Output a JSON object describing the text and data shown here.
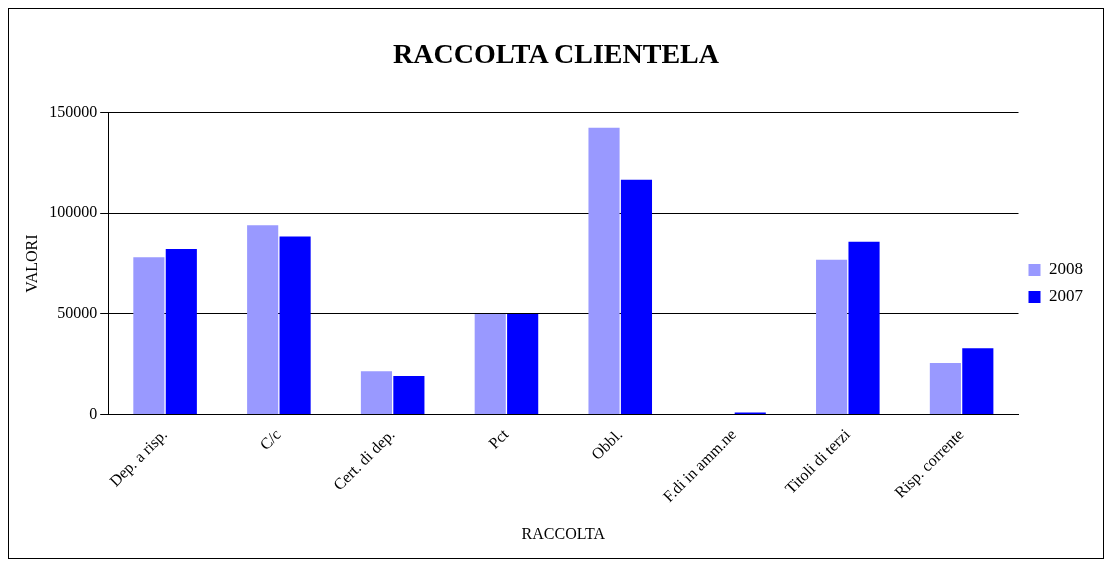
{
  "chart_data": {
    "type": "bar",
    "title": "RACCOLTA CLIENTELA",
    "xlabel": "RACCOLTA",
    "ylabel": "VALORI",
    "categories": [
      "Dep. a risp.",
      "C/c",
      "Cert. di dep.",
      "Pct",
      "Obbl.",
      "F.di in amm.ne",
      "Titoli di terzi",
      "Risp. corrente"
    ],
    "series": [
      {
        "name": "2008",
        "color": "#9999ff",
        "values": [
          78200,
          94000,
          21600,
          50000,
          142500,
          0,
          76900,
          25600
        ]
      },
      {
        "name": "2007",
        "color": "#0000ff",
        "values": [
          82200,
          88500,
          19200,
          50000,
          116700,
          1100,
          85900,
          33000
        ]
      }
    ],
    "ylim": [
      0,
      150000
    ],
    "yticks": [
      0,
      50000,
      100000,
      150000
    ],
    "grid": "y",
    "legend": "right"
  }
}
